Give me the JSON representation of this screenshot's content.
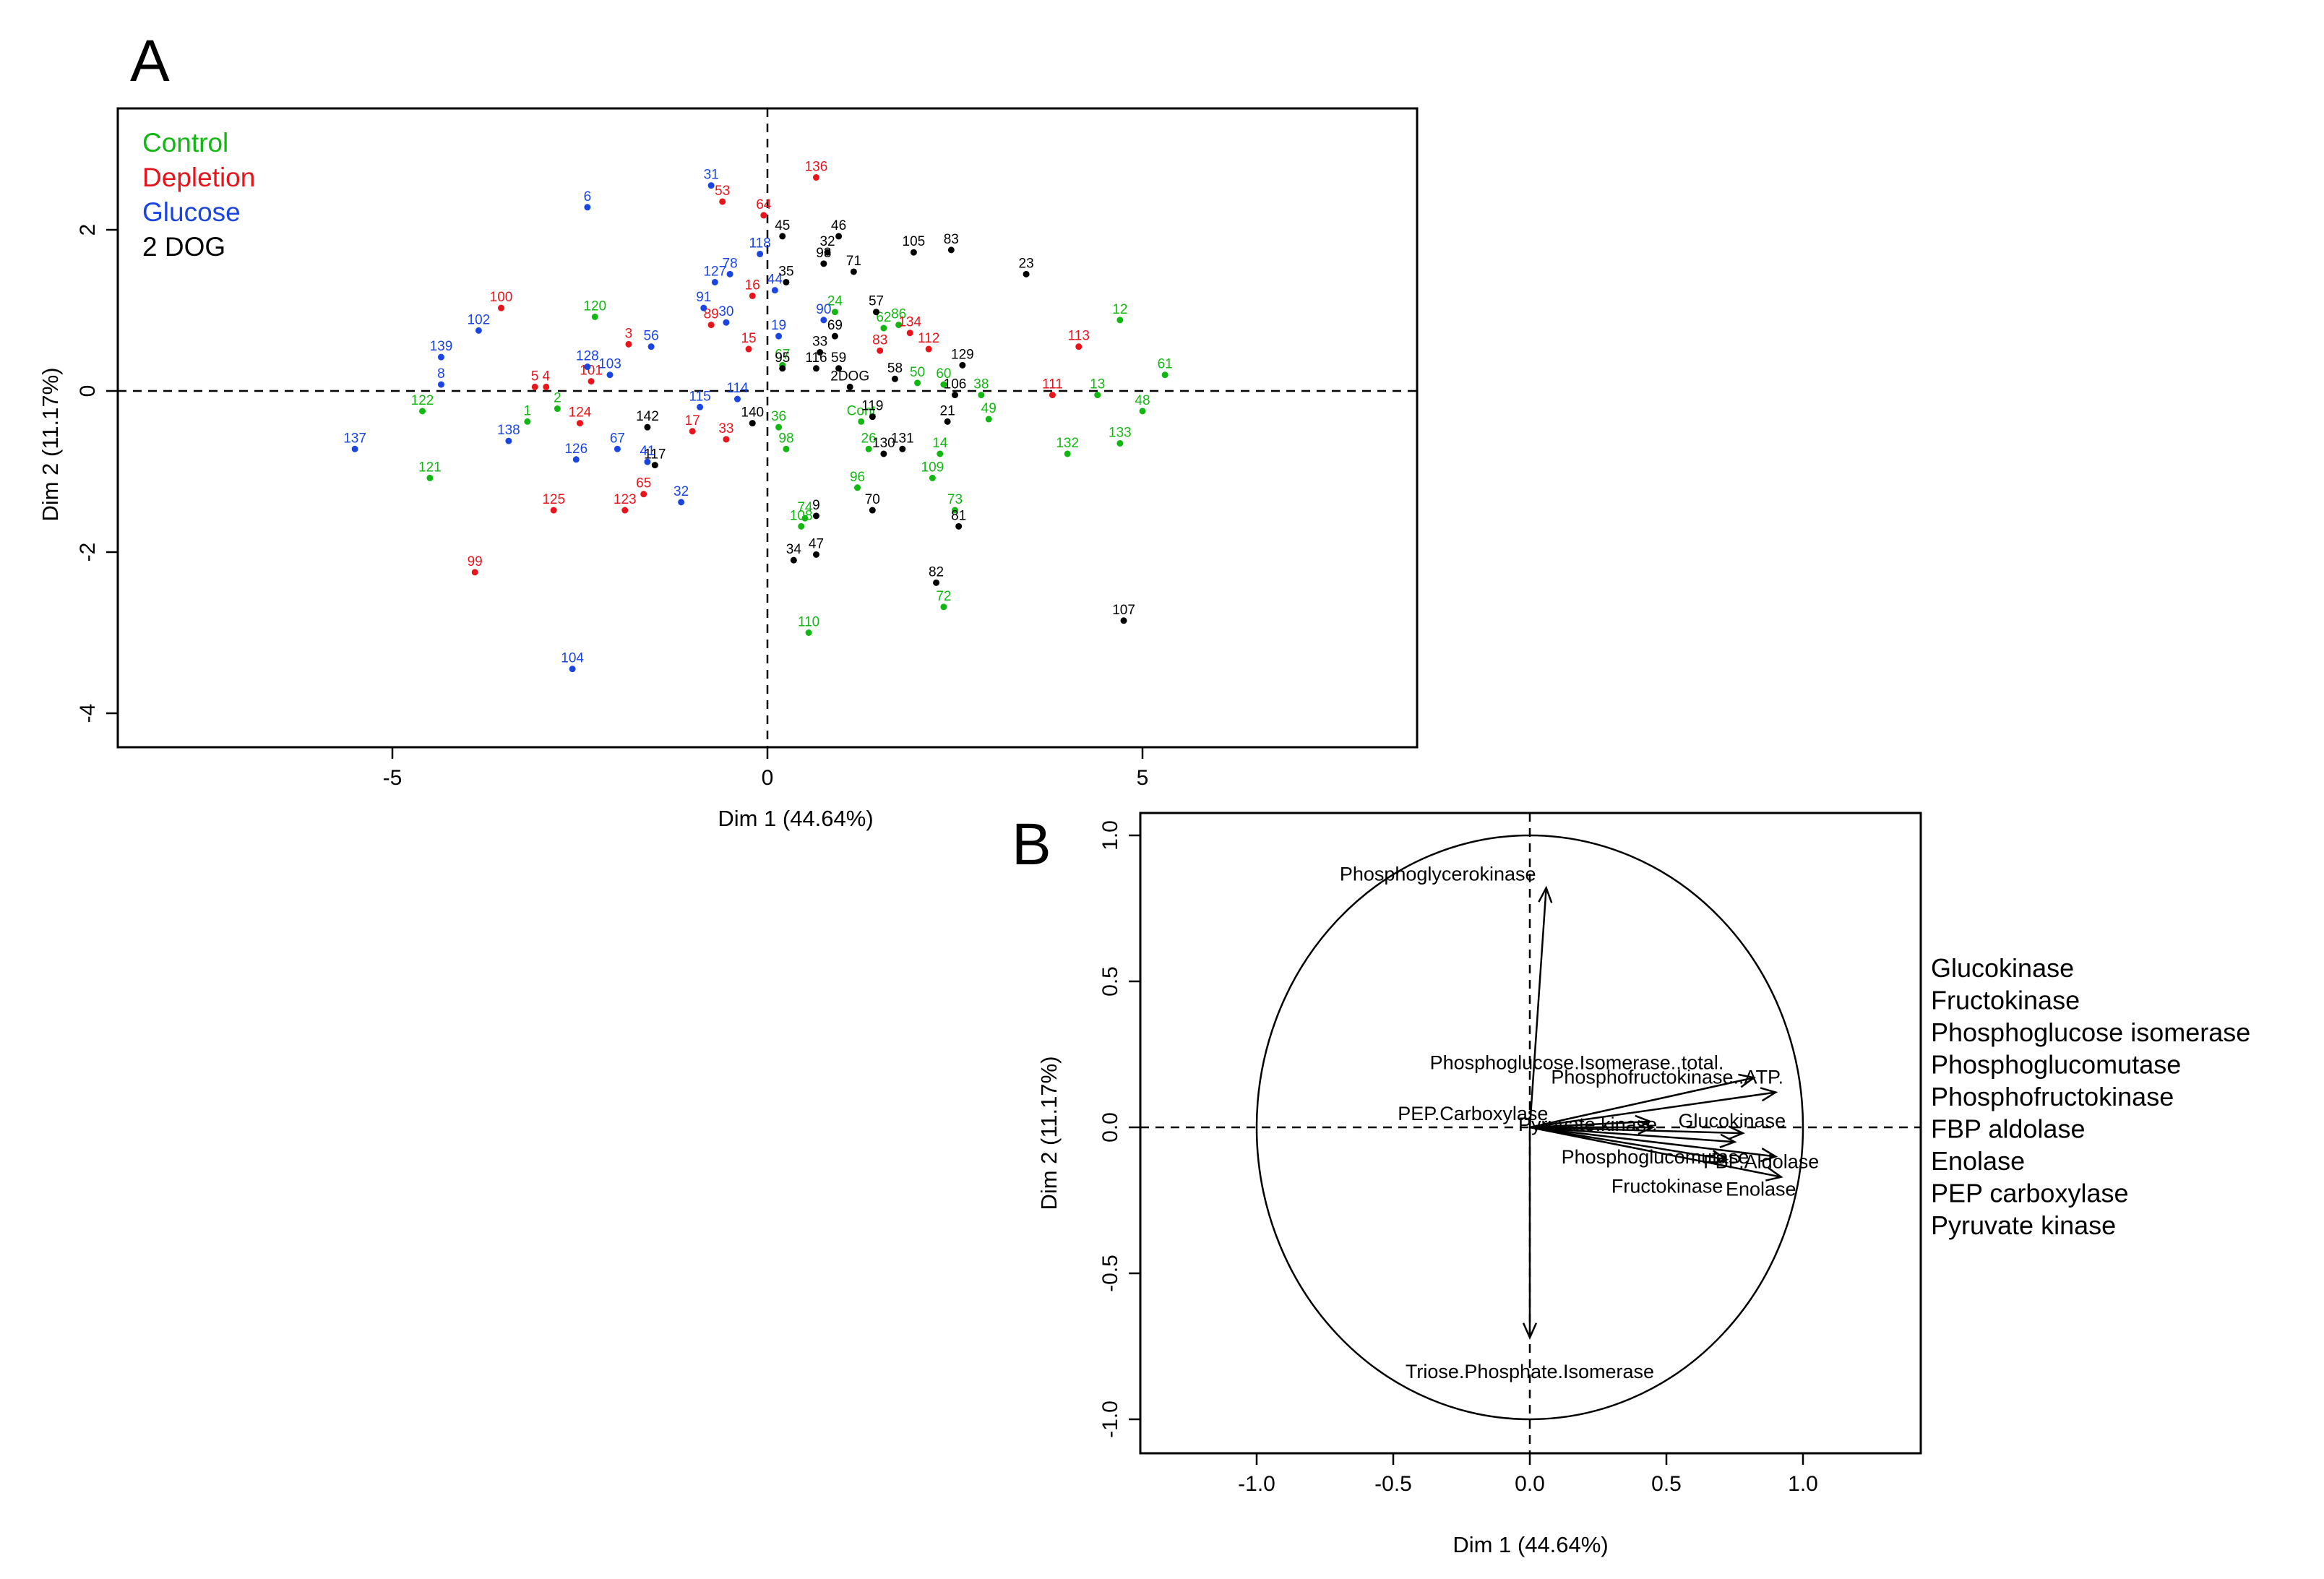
{
  "chart_data": [
    {
      "panel_label": "A",
      "type": "scatter",
      "title": "",
      "xlabel": "Dim 1 (44.64%)",
      "ylabel": "Dim 2 (11.17%)",
      "xlim": [
        -8.7,
        8.6
      ],
      "ylim": [
        -4.45,
        3.5
      ],
      "xticks": [
        -5,
        0,
        5
      ],
      "yticks": [
        -4,
        -2,
        0,
        2
      ],
      "xtick_labels": [
        "-5",
        "0",
        "5"
      ],
      "ytick_labels": [
        "-4",
        "-2",
        "0",
        "2"
      ],
      "reference_lines": {
        "x": 0,
        "y": 0,
        "style": "dashed"
      },
      "legend": {
        "placement": "top-left",
        "entries": [
          {
            "name": "Control",
            "color": "#12b812"
          },
          {
            "name": "Depletion",
            "color": "#e8141b"
          },
          {
            "name": "Glucose",
            "color": "#1b45e0"
          },
          {
            "name": "2 DOG",
            "color": "#000000"
          }
        ]
      },
      "series": [
        {
          "name": "Control",
          "color": "#12b812",
          "points": [
            {
              "label": "122",
              "x": -4.6,
              "y": -0.25
            },
            {
              "label": "121",
              "x": -4.5,
              "y": -1.08
            },
            {
              "label": "1",
              "x": -3.2,
              "y": -0.38
            },
            {
              "label": "2",
              "x": -2.8,
              "y": -0.22
            },
            {
              "label": "120",
              "x": -2.3,
              "y": 0.92
            },
            {
              "label": "12",
              "x": 4.7,
              "y": 0.88
            },
            {
              "label": "61",
              "x": 5.3,
              "y": 0.2
            },
            {
              "label": "13",
              "x": 4.4,
              "y": -0.05
            },
            {
              "label": "48",
              "x": 5.0,
              "y": -0.25
            },
            {
              "label": "132",
              "x": 4.0,
              "y": -0.78
            },
            {
              "label": "133",
              "x": 4.7,
              "y": -0.65
            },
            {
              "label": "24",
              "x": 0.9,
              "y": 0.98
            },
            {
              "label": "62",
              "x": 1.55,
              "y": 0.78
            },
            {
              "label": "86",
              "x": 1.75,
              "y": 0.82
            },
            {
              "label": "50",
              "x": 2.0,
              "y": 0.1
            },
            {
              "label": "60",
              "x": 2.35,
              "y": 0.08
            },
            {
              "label": "38",
              "x": 2.85,
              "y": -0.05
            },
            {
              "label": "49",
              "x": 2.95,
              "y": -0.35
            },
            {
              "label": "36",
              "x": 0.15,
              "y": -0.45
            },
            {
              "label": "98",
              "x": 0.25,
              "y": -0.72
            },
            {
              "label": "Cont",
              "x": 1.25,
              "y": -0.38
            },
            {
              "label": "26",
              "x": 1.35,
              "y": -0.72
            },
            {
              "label": "14",
              "x": 2.3,
              "y": -0.78
            },
            {
              "label": "109",
              "x": 2.2,
              "y": -1.08
            },
            {
              "label": "96",
              "x": 1.2,
              "y": -1.2
            },
            {
              "label": "73",
              "x": 2.5,
              "y": -1.48
            },
            {
              "label": "74",
              "x": 0.5,
              "y": -1.58
            },
            {
              "label": "108",
              "x": 0.45,
              "y": -1.68
            },
            {
              "label": "72",
              "x": 2.35,
              "y": -2.68
            },
            {
              "label": "110",
              "x": 0.55,
              "y": -3.0
            },
            {
              "label": "67",
              "x": 0.2,
              "y": 0.32
            }
          ]
        },
        {
          "name": "Depletion",
          "color": "#e8141b",
          "points": [
            {
              "label": "100",
              "x": -3.55,
              "y": 1.03
            },
            {
              "label": "5",
              "x": -3.1,
              "y": 0.05
            },
            {
              "label": "4",
              "x": -2.95,
              "y": 0.05
            },
            {
              "label": "124",
              "x": -2.5,
              "y": -0.4
            },
            {
              "label": "125",
              "x": -2.85,
              "y": -1.48
            },
            {
              "label": "99",
              "x": -3.9,
              "y": -2.25
            },
            {
              "label": "3",
              "x": -1.85,
              "y": 0.58
            },
            {
              "label": "101",
              "x": -2.35,
              "y": 0.12
            },
            {
              "label": "123",
              "x": -1.9,
              "y": -1.48
            },
            {
              "label": "65",
              "x": -1.65,
              "y": -1.28
            },
            {
              "label": "136",
              "x": 0.65,
              "y": 2.65
            },
            {
              "label": "53",
              "x": -0.6,
              "y": 2.35
            },
            {
              "label": "64",
              "x": -0.05,
              "y": 2.18
            },
            {
              "label": "16",
              "x": -0.2,
              "y": 1.18
            },
            {
              "label": "89",
              "x": -0.75,
              "y": 0.82
            },
            {
              "label": "15",
              "x": -0.25,
              "y": 0.52
            },
            {
              "label": "17",
              "x": -1.0,
              "y": -0.5
            },
            {
              "label": "33",
              "x": -0.55,
              "y": -0.6
            },
            {
              "label": "113",
              "x": 4.15,
              "y": 0.55
            },
            {
              "label": "111",
              "x": 3.8,
              "y": -0.05
            },
            {
              "label": "83",
              "x": 1.5,
              "y": 0.5
            },
            {
              "label": "134",
              "x": 1.9,
              "y": 0.72
            },
            {
              "label": "112",
              "x": 2.15,
              "y": 0.52
            }
          ]
        },
        {
          "name": "Glucose",
          "color": "#1b45e0",
          "points": [
            {
              "label": "137",
              "x": -5.5,
              "y": -0.72
            },
            {
              "label": "139",
              "x": -4.35,
              "y": 0.42
            },
            {
              "label": "8",
              "x": -4.35,
              "y": 0.08
            },
            {
              "label": "102",
              "x": -3.85,
              "y": 0.75
            },
            {
              "label": "138",
              "x": -3.45,
              "y": -0.62
            },
            {
              "label": "6",
              "x": -2.4,
              "y": 2.28
            },
            {
              "label": "128",
              "x": -2.4,
              "y": 0.3
            },
            {
              "label": "103",
              "x": -2.1,
              "y": 0.2
            },
            {
              "label": "126",
              "x": -2.55,
              "y": -0.85
            },
            {
              "label": "67",
              "x": -2.0,
              "y": -0.72
            },
            {
              "label": "41",
              "x": -1.6,
              "y": -0.88
            },
            {
              "label": "56",
              "x": -1.55,
              "y": 0.55
            },
            {
              "label": "32",
              "x": -1.15,
              "y": -1.38
            },
            {
              "label": "104",
              "x": -2.6,
              "y": -3.45
            },
            {
              "label": "31",
              "x": -0.75,
              "y": 2.55
            },
            {
              "label": "127",
              "x": -0.7,
              "y": 1.35
            },
            {
              "label": "78",
              "x": -0.5,
              "y": 1.45
            },
            {
              "label": "91",
              "x": -0.85,
              "y": 1.03
            },
            {
              "label": "30",
              "x": -0.55,
              "y": 0.85
            },
            {
              "label": "118",
              "x": -0.1,
              "y": 1.7
            },
            {
              "label": "44",
              "x": 0.1,
              "y": 1.25
            },
            {
              "label": "90",
              "x": 0.75,
              "y": 0.88
            },
            {
              "label": "19",
              "x": 0.15,
              "y": 0.68
            },
            {
              "label": "114",
              "x": -0.4,
              "y": -0.1
            },
            {
              "label": "115",
              "x": -0.9,
              "y": -0.2
            }
          ]
        },
        {
          "name": "2 DOG",
          "color": "#000000",
          "points": [
            {
              "label": "45",
              "x": 0.2,
              "y": 1.92
            },
            {
              "label": "46",
              "x": 0.95,
              "y": 1.92
            },
            {
              "label": "32",
              "x": 0.8,
              "y": 1.72
            },
            {
              "label": "93",
              "x": 0.75,
              "y": 1.58
            },
            {
              "label": "71",
              "x": 1.15,
              "y": 1.48
            },
            {
              "label": "105",
              "x": 1.95,
              "y": 1.72
            },
            {
              "label": "83",
              "x": 2.45,
              "y": 1.75
            },
            {
              "label": "23",
              "x": 3.45,
              "y": 1.45
            },
            {
              "label": "35",
              "x": 0.25,
              "y": 1.35
            },
            {
              "label": "57",
              "x": 1.45,
              "y": 0.98
            },
            {
              "label": "69",
              "x": 0.9,
              "y": 0.68
            },
            {
              "label": "33",
              "x": 0.7,
              "y": 0.48
            },
            {
              "label": "95",
              "x": 0.2,
              "y": 0.28
            },
            {
              "label": "116",
              "x": 0.65,
              "y": 0.28
            },
            {
              "label": "59",
              "x": 0.95,
              "y": 0.28
            },
            {
              "label": "58",
              "x": 1.7,
              "y": 0.15
            },
            {
              "label": "2DOG",
              "x": 1.1,
              "y": 0.05
            },
            {
              "label": "119",
              "x": 1.4,
              "y": -0.32
            },
            {
              "label": "130",
              "x": 1.55,
              "y": -0.78
            },
            {
              "label": "131",
              "x": 1.8,
              "y": -0.72
            },
            {
              "label": "106",
              "x": 2.5,
              "y": -0.05
            },
            {
              "label": "21",
              "x": 2.4,
              "y": -0.38
            },
            {
              "label": "129",
              "x": 2.6,
              "y": 0.32
            },
            {
              "label": "70",
              "x": 1.4,
              "y": -1.48
            },
            {
              "label": "81",
              "x": 2.55,
              "y": -1.68
            },
            {
              "label": "82",
              "x": 2.25,
              "y": -2.38
            },
            {
              "label": "34",
              "x": 0.35,
              "y": -2.1
            },
            {
              "label": "47",
              "x": 0.65,
              "y": -2.03
            },
            {
              "label": "9",
              "x": 0.65,
              "y": -1.55
            },
            {
              "label": "107",
              "x": 4.75,
              "y": -2.85
            },
            {
              "label": "142",
              "x": -1.6,
              "y": -0.45
            },
            {
              "label": "117",
              "x": -1.5,
              "y": -0.92
            },
            {
              "label": "140",
              "x": -0.2,
              "y": -0.4
            }
          ]
        }
      ]
    },
    {
      "panel_label": "B",
      "type": "correlation-circle",
      "title": "",
      "xlabel": "Dim 1 (44.64%)",
      "ylabel": "Dim 2 (11.17%)",
      "xlim": [
        -1.45,
        1.45
      ],
      "ylim": [
        -1.08,
        1.08
      ],
      "xticks": [
        -1.0,
        -0.5,
        0.0,
        0.5,
        1.0
      ],
      "yticks": [
        -1.0,
        -0.5,
        0.0,
        0.5,
        1.0
      ],
      "xtick_labels": [
        "-1.0",
        "-0.5",
        "0.0",
        "0.5",
        "1.0"
      ],
      "ytick_labels": [
        "-1.0",
        "-0.5",
        "0.0",
        "0.5",
        "1.0"
      ],
      "unit_circle": true,
      "reference_lines": {
        "x": 0,
        "y": 0,
        "style": "dashed"
      },
      "vectors": [
        {
          "name": "Phosphoglycerokinase",
          "x": 0.06,
          "y": 0.82
        },
        {
          "name": "Phosphoglucose.Isomerase..total.",
          "x": 0.82,
          "y": 0.17
        },
        {
          "name": "Phosphofructokinase..ATP.",
          "x": 0.9,
          "y": 0.12
        },
        {
          "name": "PEP.Carboxylase",
          "x": 0.44,
          "y": 0.02
        },
        {
          "name": "Pyruvate.kinase",
          "x": 0.45,
          "y": 0.0
        },
        {
          "name": "Glucokinase",
          "x": 0.78,
          "y": -0.02
        },
        {
          "name": "Phosphoglucomutase",
          "x": 0.75,
          "y": -0.05
        },
        {
          "name": "FBP.Aldolase",
          "x": 0.9,
          "y": -0.1
        },
        {
          "name": "Fructokinase",
          "x": 0.72,
          "y": -0.11
        },
        {
          "name": "Enolase",
          "x": 0.92,
          "y": -0.17
        },
        {
          "name": "Triose.Phosphate.Isomerase",
          "x": 0.0,
          "y": -0.72
        }
      ]
    }
  ],
  "side_list": {
    "items": [
      "Glucokinase",
      "Fructokinase",
      "Phosphoglucose isomerase",
      "Phosphoglucomutase",
      "Phosphofructokinase",
      "FBP aldolase",
      "Enolase",
      "PEP carboxylase",
      "Pyruvate kinase"
    ]
  }
}
